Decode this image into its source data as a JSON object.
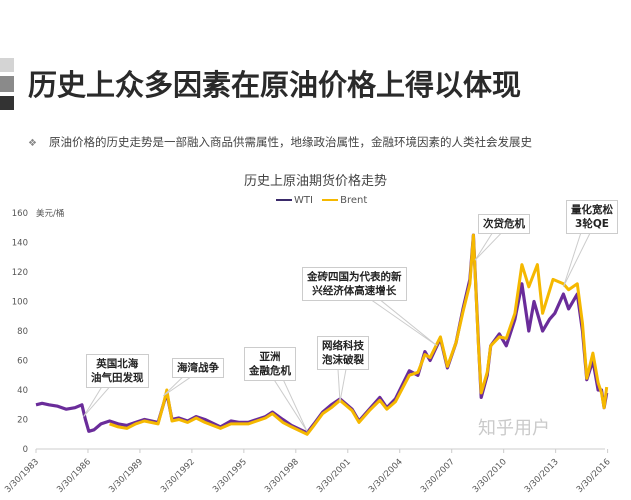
{
  "header": {
    "title": "历史上众多因素在原油价格上得以体现",
    "bullet": "原油价格的历史走势是一部融入商品供需属性，地缘政治属性，金融环境因素的人类社会发展史"
  },
  "watermark": "知乎用户",
  "chart_data": {
    "type": "line",
    "title": "历史上原油期货价格走势",
    "ylabel": "美元/桶",
    "ylim": [
      0,
      160
    ],
    "yticks": [
      "0",
      "20",
      "40",
      "60",
      "80",
      "100",
      "120",
      "140",
      "160"
    ],
    "xlim": [
      "3/30/1983",
      "2/2016"
    ],
    "xticks": [
      "3/30/1983",
      "3/30/1986",
      "3/30/1989",
      "3/30/1992",
      "3/30/1995",
      "3/30/1998",
      "3/30/2001",
      "3/30/2004",
      "3/30/2007",
      "3/30/2010",
      "3/30/2013",
      "3/30/2016"
    ],
    "legend_position": "top-center",
    "grid": false,
    "series": [
      {
        "name": "WTI",
        "color": "#6a2c9a",
        "points": [
          [
            1983.25,
            30
          ],
          [
            1983.6,
            31
          ],
          [
            1984,
            30
          ],
          [
            1984.5,
            29
          ],
          [
            1985,
            27
          ],
          [
            1985.5,
            28
          ],
          [
            1985.9,
            30
          ],
          [
            1986.1,
            20
          ],
          [
            1986.3,
            12
          ],
          [
            1986.6,
            13
          ],
          [
            1987,
            17
          ],
          [
            1987.5,
            19
          ],
          [
            1988,
            17
          ],
          [
            1988.5,
            16
          ],
          [
            1989,
            18
          ],
          [
            1989.5,
            20
          ],
          [
            1990.3,
            18
          ],
          [
            1990.6,
            30
          ],
          [
            1990.8,
            38
          ],
          [
            1991.1,
            20
          ],
          [
            1991.5,
            21
          ],
          [
            1992,
            19
          ],
          [
            1992.5,
            22
          ],
          [
            1993,
            20
          ],
          [
            1993.9,
            15
          ],
          [
            1994.5,
            19
          ],
          [
            1995,
            18
          ],
          [
            1995.5,
            18
          ],
          [
            1996.5,
            22
          ],
          [
            1996.9,
            25
          ],
          [
            1997.5,
            20
          ],
          [
            1998,
            16
          ],
          [
            1998.9,
            11
          ],
          [
            1999.3,
            17
          ],
          [
            1999.8,
            25
          ],
          [
            2000.3,
            30
          ],
          [
            2000.8,
            34
          ],
          [
            2001.5,
            27
          ],
          [
            2001.9,
            19
          ],
          [
            2002.5,
            27
          ],
          [
            2003.1,
            35
          ],
          [
            2003.5,
            28
          ],
          [
            2004,
            34
          ],
          [
            2004.8,
            53
          ],
          [
            2005.3,
            50
          ],
          [
            2005.7,
            66
          ],
          [
            2006,
            60
          ],
          [
            2006.6,
            75
          ],
          [
            2007,
            55
          ],
          [
            2007.5,
            72
          ],
          [
            2007.9,
            95
          ],
          [
            2008.3,
            115
          ],
          [
            2008.5,
            145
          ],
          [
            2008.8,
            70
          ],
          [
            2008.95,
            35
          ],
          [
            2009.3,
            50
          ],
          [
            2009.5,
            70
          ],
          [
            2010,
            78
          ],
          [
            2010.4,
            70
          ],
          [
            2010.9,
            88
          ],
          [
            2011.3,
            112
          ],
          [
            2011.7,
            80
          ],
          [
            2012,
            100
          ],
          [
            2012.5,
            80
          ],
          [
            2012.9,
            88
          ],
          [
            2013.2,
            92
          ],
          [
            2013.7,
            105
          ],
          [
            2014,
            95
          ],
          [
            2014.5,
            105
          ],
          [
            2014.8,
            80
          ],
          [
            2015.05,
            47
          ],
          [
            2015.4,
            60
          ],
          [
            2015.7,
            40
          ],
          [
            2015.9,
            40
          ],
          [
            2016.05,
            28
          ],
          [
            2016.2,
            38
          ]
        ]
      },
      {
        "name": "Brent",
        "color": "#f5b800",
        "points": [
          [
            1987.5,
            17
          ],
          [
            1988,
            15
          ],
          [
            1988.5,
            14
          ],
          [
            1989,
            17
          ],
          [
            1989.5,
            19
          ],
          [
            1990.3,
            17
          ],
          [
            1990.6,
            30
          ],
          [
            1990.8,
            40
          ],
          [
            1991.1,
            19
          ],
          [
            1991.5,
            20
          ],
          [
            1992,
            18
          ],
          [
            1992.5,
            21
          ],
          [
            1993,
            18
          ],
          [
            1993.9,
            14
          ],
          [
            1994.5,
            17
          ],
          [
            1995,
            17
          ],
          [
            1995.5,
            17
          ],
          [
            1996.5,
            21
          ],
          [
            1996.9,
            24
          ],
          [
            1997.5,
            18
          ],
          [
            1998,
            15
          ],
          [
            1998.9,
            10
          ],
          [
            1999.3,
            16
          ],
          [
            1999.8,
            24
          ],
          [
            2000.3,
            28
          ],
          [
            2000.8,
            33
          ],
          [
            2001.5,
            26
          ],
          [
            2001.9,
            18
          ],
          [
            2002.5,
            26
          ],
          [
            2003.1,
            33
          ],
          [
            2003.5,
            27
          ],
          [
            2004,
            32
          ],
          [
            2004.8,
            50
          ],
          [
            2005.3,
            52
          ],
          [
            2005.7,
            64
          ],
          [
            2006,
            62
          ],
          [
            2006.6,
            76
          ],
          [
            2007,
            56
          ],
          [
            2007.5,
            72
          ],
          [
            2007.9,
            93
          ],
          [
            2008.3,
            112
          ],
          [
            2008.5,
            145
          ],
          [
            2008.8,
            68
          ],
          [
            2008.95,
            38
          ],
          [
            2009.3,
            52
          ],
          [
            2009.5,
            70
          ],
          [
            2010,
            76
          ],
          [
            2010.4,
            75
          ],
          [
            2010.9,
            92
          ],
          [
            2011.3,
            125
          ],
          [
            2011.7,
            110
          ],
          [
            2012.2,
            125
          ],
          [
            2012.5,
            92
          ],
          [
            2013.1,
            115
          ],
          [
            2013.7,
            112
          ],
          [
            2014,
            108
          ],
          [
            2014.5,
            112
          ],
          [
            2014.8,
            85
          ],
          [
            2015.05,
            48
          ],
          [
            2015.4,
            65
          ],
          [
            2015.7,
            45
          ],
          [
            2015.9,
            38
          ],
          [
            2016.05,
            28
          ],
          [
            2016.2,
            42
          ]
        ]
      }
    ],
    "annotations": [
      {
        "text": "英国北海\n油气田发现",
        "year": 1986.0,
        "value": 22
      },
      {
        "text": "海湾战争",
        "year": 1990.6,
        "value": 36
      },
      {
        "text": "亚洲\n金融危机",
        "year": 1998.9,
        "value": 12
      },
      {
        "text": "网络科技\n泡沫破裂",
        "year": 2000.8,
        "value": 32
      },
      {
        "text": "金砖四国为代表的新\n兴经济体高速增长",
        "year": 2006.4,
        "value": 70
      },
      {
        "text": "次贷危机",
        "year": 2008.6,
        "value": 128
      },
      {
        "text": "量化宽松\n3轮QE",
        "year": 2013.7,
        "value": 110
      }
    ]
  }
}
